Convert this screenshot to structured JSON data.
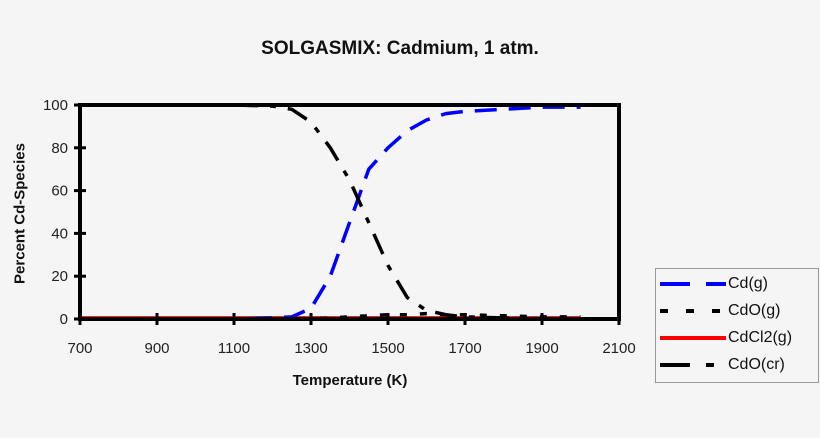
{
  "chart_data": {
    "type": "line",
    "title": "SOLGASMIX: Cadmium, 1 atm.",
    "xlabel": "Temperature (K)",
    "ylabel": "Percent Cd-Species",
    "xlim": [
      700,
      2100
    ],
    "ylim": [
      0,
      100
    ],
    "xticks": [
      700,
      900,
      1100,
      1300,
      1500,
      1700,
      1900,
      2100
    ],
    "yticks": [
      0,
      20,
      40,
      60,
      80,
      100
    ],
    "grid": false,
    "legend_position": "right",
    "x": [
      700,
      800,
      900,
      1000,
      1100,
      1200,
      1250,
      1300,
      1350,
      1400,
      1450,
      1500,
      1550,
      1600,
      1650,
      1700,
      1800,
      1900,
      2000
    ],
    "series": [
      {
        "name": "Cd(g)",
        "color": "#0000ff",
        "style": "dashed",
        "values": [
          0,
          0,
          0,
          0,
          0,
          0.5,
          1,
          5,
          20,
          45,
          70,
          80,
          88,
          93,
          96,
          97,
          98,
          99,
          99
        ]
      },
      {
        "name": "CdO(g)",
        "color": "#000000",
        "style": "dotted",
        "values": [
          0,
          0,
          0,
          0,
          0,
          0,
          0,
          0,
          0.5,
          1,
          1.5,
          2,
          2,
          2.5,
          2,
          2,
          1.5,
          1,
          1
        ]
      },
      {
        "name": "CdCl2(g)",
        "color": "#ff0000",
        "style": "solid",
        "values": [
          0.5,
          0.5,
          0.5,
          0.5,
          0.5,
          0.5,
          0.5,
          0.5,
          0.5,
          0.5,
          0.5,
          0.5,
          0.5,
          0.5,
          0.5,
          0.5,
          0.5,
          0.5,
          0.5
        ]
      },
      {
        "name": "CdO(cr)",
        "color": "#000000",
        "style": "dash-dot",
        "values": [
          100,
          100,
          100,
          100,
          100,
          99.5,
          98,
          92,
          80,
          65,
          45,
          25,
          10,
          4,
          2,
          1,
          0.5,
          0,
          0
        ]
      }
    ]
  }
}
